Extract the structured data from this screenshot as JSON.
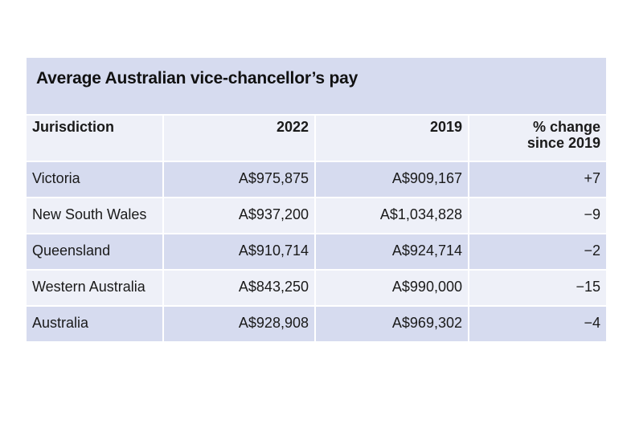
{
  "table": {
    "title": "Average Australian vice-chancellor’s pay",
    "headers": {
      "jurisdiction": "Jurisdiction",
      "y2022": "2022",
      "y2019": "2019",
      "change_line1": "% change",
      "change_line2": "since 2019"
    },
    "rows": [
      {
        "jurisdiction": "Victoria",
        "pay_2022": "A$975,875",
        "pay_2019": "A$909,167",
        "change": "+7"
      },
      {
        "jurisdiction": "New South Wales",
        "pay_2022": "A$937,200",
        "pay_2019": "A$1,034,828",
        "change": "−9"
      },
      {
        "jurisdiction": "Queensland",
        "pay_2022": "A$910,714",
        "pay_2019": "A$924,714",
        "change": "−2"
      },
      {
        "jurisdiction": "Western Australia",
        "pay_2022": "A$843,250",
        "pay_2019": "A$990,000",
        "change": "−15"
      },
      {
        "jurisdiction": "Australia",
        "pay_2022": "A$928,908",
        "pay_2019": "A$969,302",
        "change": "−4"
      }
    ],
    "colors": {
      "title_band": "#d6dbef",
      "row_dark": "#d6dbef",
      "row_light": "#eef0f8"
    }
  }
}
